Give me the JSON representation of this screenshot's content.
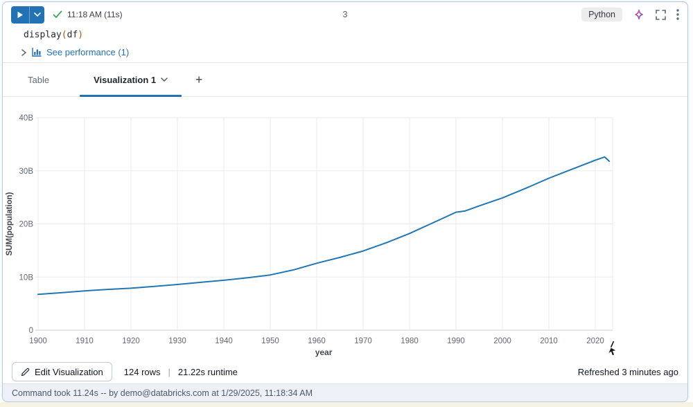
{
  "cell": {
    "run_time_label": "11:18 AM (11s)",
    "cell_number": "3",
    "language_label": "Python",
    "code": {
      "function": "display",
      "open_paren": "(",
      "argument": "df",
      "close_paren": ")"
    },
    "performance_link": "See performance (1)"
  },
  "tabs": {
    "table_label": "Table",
    "active_label": "Visualization 1",
    "add_label": "+"
  },
  "chart_data": {
    "type": "line",
    "title": "",
    "xlabel": "year",
    "ylabel": "SUM(population)",
    "xlim": [
      1900,
      2023
    ],
    "ylim_billions": [
      0,
      40
    ],
    "grid": true,
    "legend": "none",
    "x_ticks": [
      1900,
      1910,
      1920,
      1930,
      1940,
      1950,
      1960,
      1970,
      1980,
      1990,
      2000,
      2010,
      2020
    ],
    "y_ticks": [
      {
        "value": 0,
        "label": "0"
      },
      {
        "value": 10,
        "label": "10B"
      },
      {
        "value": 20,
        "label": "20B"
      },
      {
        "value": 30,
        "label": "30B"
      },
      {
        "value": 40,
        "label": "40B"
      }
    ],
    "series": [
      {
        "name": "SUM(population)",
        "color": "#2077b4",
        "units": "billions",
        "points": [
          [
            1900,
            6.75
          ],
          [
            1905,
            7.05
          ],
          [
            1910,
            7.4
          ],
          [
            1915,
            7.68
          ],
          [
            1920,
            7.9
          ],
          [
            1925,
            8.25
          ],
          [
            1930,
            8.6
          ],
          [
            1935,
            9.0
          ],
          [
            1940,
            9.4
          ],
          [
            1945,
            9.85
          ],
          [
            1950,
            10.4
          ],
          [
            1955,
            11.35
          ],
          [
            1960,
            12.6
          ],
          [
            1965,
            13.7
          ],
          [
            1970,
            14.9
          ],
          [
            1975,
            16.45
          ],
          [
            1980,
            18.2
          ],
          [
            1985,
            20.2
          ],
          [
            1990,
            22.2
          ],
          [
            1992,
            22.45
          ],
          [
            1995,
            23.4
          ],
          [
            2000,
            24.9
          ],
          [
            2005,
            26.7
          ],
          [
            2010,
            28.6
          ],
          [
            2015,
            30.3
          ],
          [
            2020,
            32.0
          ],
          [
            2022,
            32.6
          ],
          [
            2023,
            31.8
          ]
        ]
      }
    ]
  },
  "bottom_bar": {
    "edit_button": "Edit Visualization",
    "rows": "124 rows",
    "separator": "|",
    "runtime": "21.22s runtime",
    "refreshed": "Refreshed 3 minutes ago"
  },
  "footer": {
    "text": "Command took 11.24s -- by demo@databricks.com at 1/29/2025, 11:18:34 AM"
  },
  "colors": {
    "accent_blue": "#2272B4",
    "line_blue": "#2077b4",
    "success_green": "#3BA65E",
    "grid_gray": "#ebebeb",
    "axis_gray": "#c9ccd0",
    "tick_text": "#63696f",
    "footer_bg": "#edf1f7"
  }
}
